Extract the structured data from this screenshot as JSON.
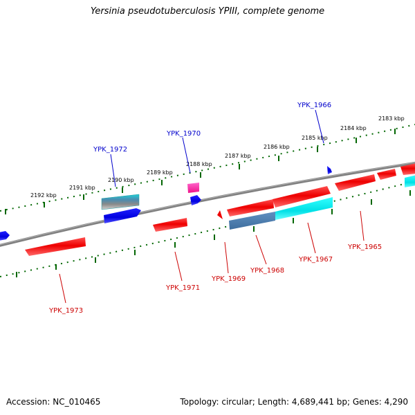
{
  "title": "Yersinia pseudotuberculosis YPIII, complete genome",
  "footer": {
    "accession": "Accession: NC_010465",
    "stats": "Topology: circular; Length: 4,689,441 bp; Genes: 4,290"
  },
  "scale_labels": [
    "2192 kbp",
    "2191 kbp",
    "2190 kbp",
    "2189 kbp",
    "2188 kbp",
    "2187 kbp",
    "2186 kbp",
    "2185 kbp",
    "2184 kbp",
    "2183 kbp"
  ],
  "genes": {
    "YPK_1972": "YPK_1972",
    "YPK_1970": "YPK_1970",
    "YPK_1966": "YPK_1966",
    "YPK_1973": "YPK_1973",
    "YPK_1971": "YPK_1971",
    "YPK_1969": "YPK_1969",
    "YPK_1968": "YPK_1968",
    "YPK_1967": "YPK_1967",
    "YPK_1965": "YPK_1965"
  },
  "colors": {
    "forward_label": "#0000cc",
    "reverse_label": "#cc0000",
    "tick": "#006600",
    "backbone": "#808080"
  }
}
